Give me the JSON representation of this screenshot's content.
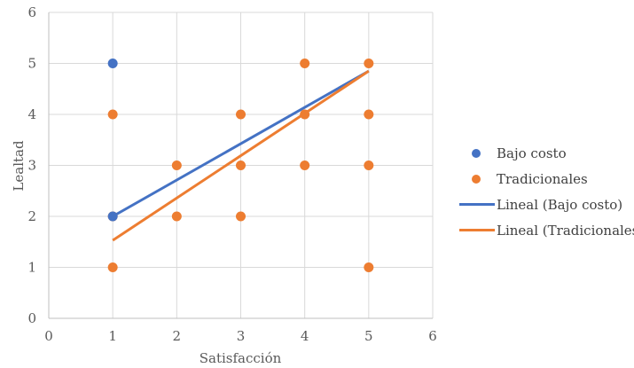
{
  "chart_data": {
    "type": "scatter",
    "title": "",
    "xlabel": "Satisfacción",
    "ylabel": "Lealtad",
    "xlim": [
      0,
      6
    ],
    "ylim": [
      0,
      6
    ],
    "x_ticks": [
      0,
      1,
      2,
      3,
      4,
      5,
      6
    ],
    "y_ticks": [
      0,
      1,
      2,
      3,
      4,
      5,
      6
    ],
    "grid": true,
    "legend_position": "right",
    "series": [
      {
        "name": "Bajo costo",
        "color": "#4472C4",
        "points": [
          [
            1,
            5
          ],
          [
            1,
            2
          ]
        ]
      },
      {
        "name": "Tradicionales",
        "color": "#ED7D31",
        "points": [
          [
            1,
            4
          ],
          [
            1,
            2
          ],
          [
            1,
            1
          ],
          [
            2,
            3
          ],
          [
            2,
            2
          ],
          [
            3,
            4
          ],
          [
            3,
            3
          ],
          [
            3,
            2
          ],
          [
            4,
            5
          ],
          [
            4,
            4
          ],
          [
            4,
            3
          ],
          [
            5,
            5
          ],
          [
            5,
            4
          ],
          [
            5,
            3
          ],
          [
            5,
            1
          ]
        ]
      }
    ],
    "trendlines": [
      {
        "name": "Lineal (Bajo costo)",
        "color": "#4472C4",
        "from": [
          1,
          2
        ],
        "to": [
          5,
          4.85
        ]
      },
      {
        "name": "Lineal (Tradicionales)",
        "color": "#ED7D31",
        "from": [
          1,
          1.53
        ],
        "to": [
          5,
          4.85
        ]
      }
    ],
    "legend": [
      {
        "label": "Bajo costo",
        "kind": "marker",
        "color": "#4472C4"
      },
      {
        "label": "Tradicionales",
        "kind": "marker",
        "color": "#ED7D31"
      },
      {
        "label": "Lineal (Bajo costo)",
        "kind": "line",
        "color": "#4472C4"
      },
      {
        "label": "Lineal (Tradicionales)",
        "kind": "line",
        "color": "#ED7D31"
      }
    ]
  }
}
